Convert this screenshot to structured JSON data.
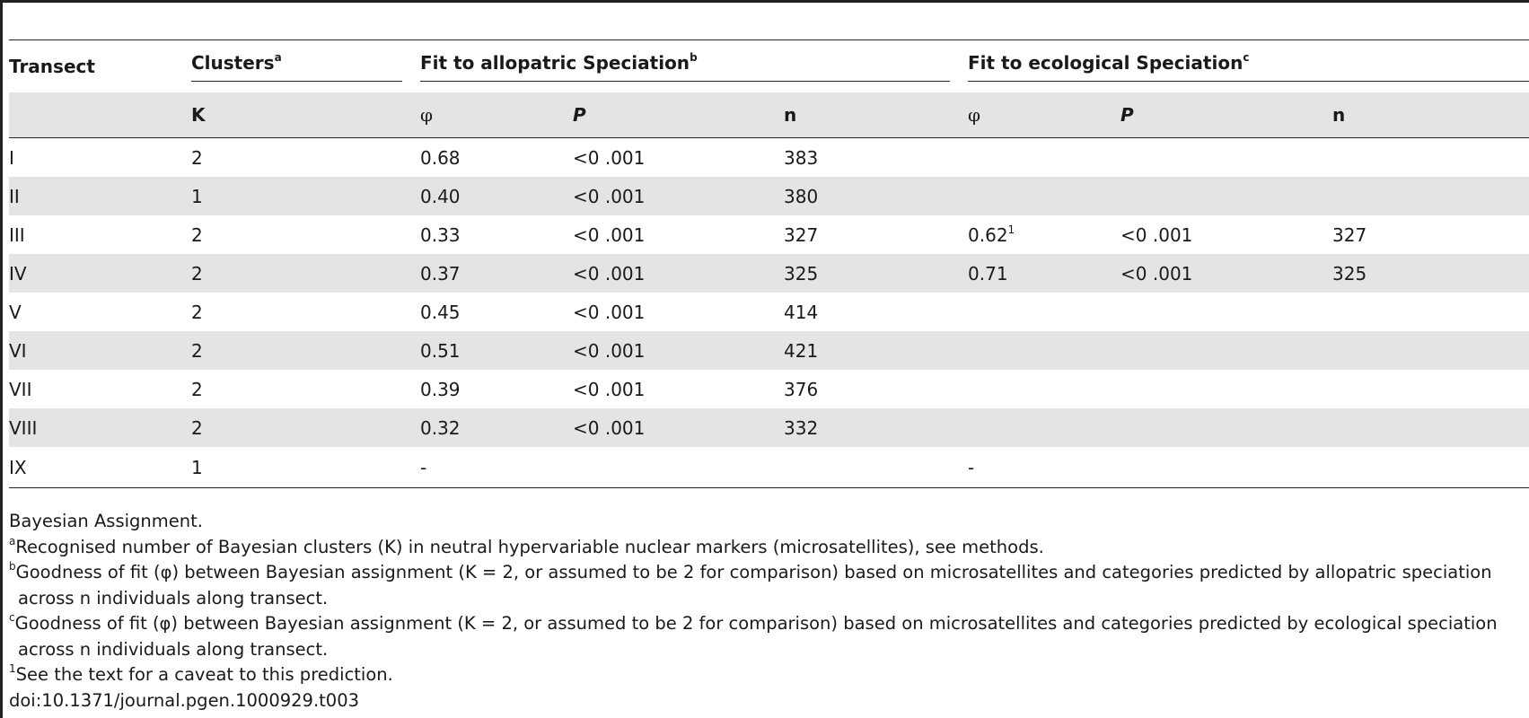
{
  "header": {
    "transect": "Transect",
    "clusters": "Clusters",
    "clusters_sup": "a",
    "allopatric": "Fit to allopatric Speciation",
    "allopatric_sup": "b",
    "ecological": "Fit to ecological Speciation",
    "ecological_sup": "c",
    "sub": [
      "",
      "K",
      "φ",
      "P",
      "n",
      "φ",
      "P",
      "n"
    ]
  },
  "rows": [
    {
      "transect": "I",
      "k": "2",
      "phi1": "0.68",
      "p1": "<0 .001",
      "n1": "383",
      "phi2": "",
      "phi2_sup": "",
      "p2": "",
      "n2": ""
    },
    {
      "transect": "II",
      "k": "1",
      "phi1": "0.40",
      "p1": "<0 .001",
      "n1": "380",
      "phi2": "",
      "phi2_sup": "",
      "p2": "",
      "n2": ""
    },
    {
      "transect": "III",
      "k": "2",
      "phi1": "0.33",
      "p1": "<0 .001",
      "n1": "327",
      "phi2": "0.62",
      "phi2_sup": "1",
      "p2": "<0 .001",
      "n2": "327"
    },
    {
      "transect": "IV",
      "k": "2",
      "phi1": "0.37",
      "p1": "<0 .001",
      "n1": "325",
      "phi2": "0.71",
      "phi2_sup": "",
      "p2": "<0 .001",
      "n2": "325"
    },
    {
      "transect": "V",
      "k": "2",
      "phi1": "0.45",
      "p1": "<0 .001",
      "n1": "414",
      "phi2": "",
      "phi2_sup": "",
      "p2": "",
      "n2": ""
    },
    {
      "transect": "VI",
      "k": "2",
      "phi1": "0.51",
      "p1": "<0 .001",
      "n1": "421",
      "phi2": "",
      "phi2_sup": "",
      "p2": "",
      "n2": ""
    },
    {
      "transect": "VII",
      "k": "2",
      "phi1": "0.39",
      "p1": "<0 .001",
      "n1": "376",
      "phi2": "",
      "phi2_sup": "",
      "p2": "",
      "n2": ""
    },
    {
      "transect": "VIII",
      "k": "2",
      "phi1": "0.32",
      "p1": "<0 .001",
      "n1": "332",
      "phi2": "",
      "phi2_sup": "",
      "p2": "",
      "n2": ""
    },
    {
      "transect": "IX",
      "k": "1",
      "phi1": "-",
      "p1": "",
      "n1": "",
      "phi2": "-",
      "phi2_sup": "",
      "p2": "",
      "n2": ""
    }
  ],
  "footnotes": {
    "caption": "Bayesian Assignment.",
    "a_mark": "a",
    "a_text": "Recognised number of Bayesian clusters (K) in neutral hypervariable nuclear markers (microsatellites), see methods.",
    "b_mark": "b",
    "b_text": "Goodness of fit (φ) between Bayesian assignment (K = 2, or assumed to be 2 for comparison) based on microsatellites and categories predicted by allopatric speciation",
    "b_cont": "across n individuals along transect.",
    "c_mark": "c",
    "c_text": "Goodness of fit (φ) between Bayesian assignment (K = 2, or assumed to be 2 for comparison) based on microsatellites and categories predicted by ecological speciation",
    "c_cont": "across n individuals along transect.",
    "one_mark": "1",
    "one_text": "See the text for a caveat to this prediction.",
    "doi": "doi:10.1371/journal.pgen.1000929.t003"
  }
}
